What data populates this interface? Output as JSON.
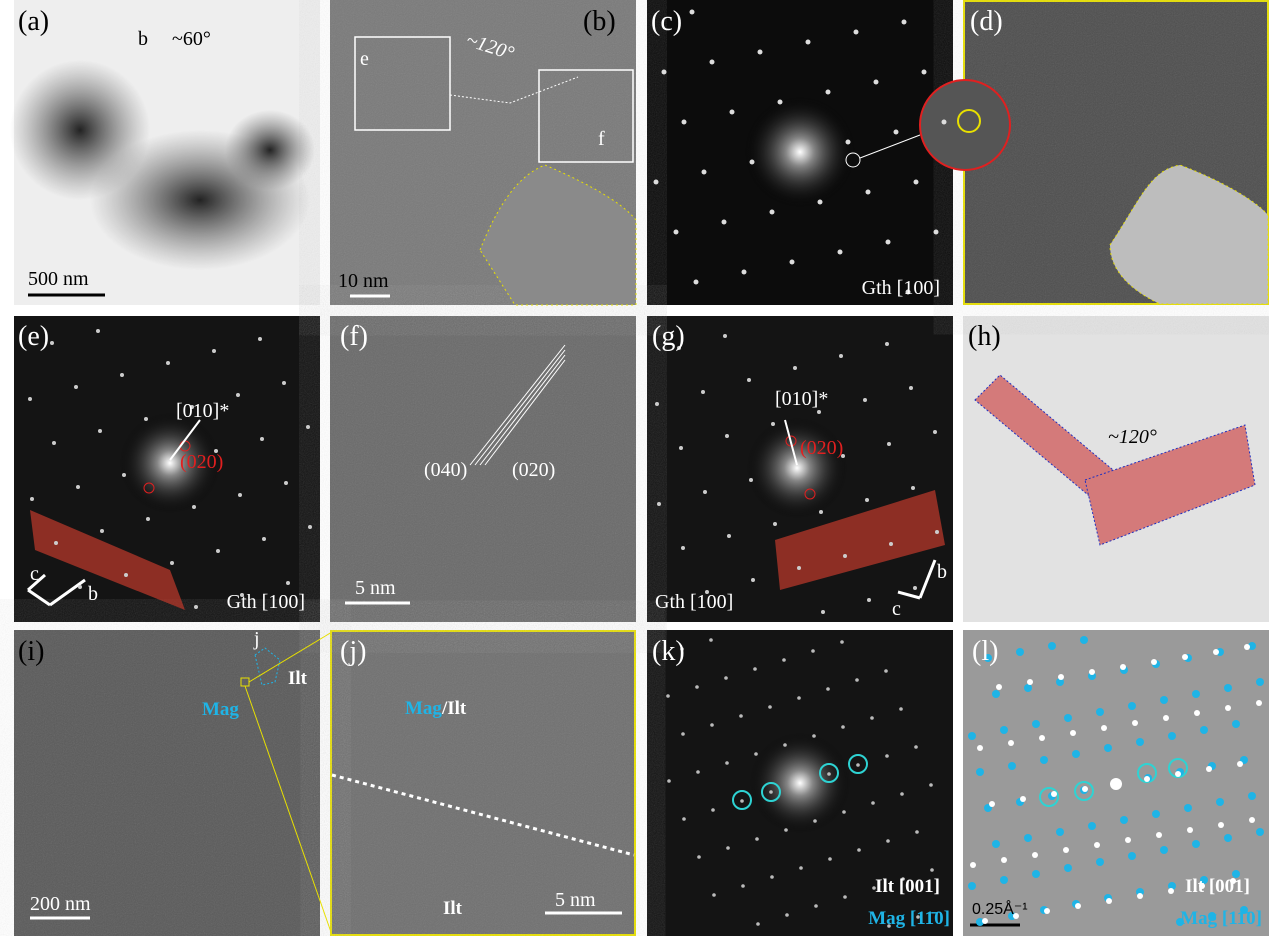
{
  "panels": [
    {
      "label": "(a)",
      "annotations": [
        "b",
        "~60°"
      ],
      "scale_bar": "500 nm"
    },
    {
      "label": "(b)",
      "annotations": [
        "e",
        "f",
        "~120°"
      ],
      "scale_bar": "10 nm"
    },
    {
      "label": "(c)",
      "zone_axis": "Gth [100]"
    },
    {
      "label": "(d)"
    },
    {
      "label": "(e)",
      "annotations": [
        "[010]*",
        "(020)",
        "c",
        "b"
      ],
      "zone_axis": "Gth [100]"
    },
    {
      "label": "(f)",
      "annotations": [
        "(040)",
        "(020)"
      ],
      "scale_bar": "5 nm"
    },
    {
      "label": "(g)",
      "annotations": [
        "[010]*",
        "(020)",
        "b",
        "c"
      ],
      "zone_axis": "Gth [100]"
    },
    {
      "label": "(h)",
      "annotations": [
        "~120°"
      ]
    },
    {
      "label": "(i)",
      "annotations": [
        "j",
        "Mag",
        "Ilt"
      ],
      "scale_bar": "200 nm"
    },
    {
      "label": "(j)",
      "annotations": [
        "Mag",
        "/Ilt",
        "Ilt"
      ],
      "scale_bar": "5 nm"
    },
    {
      "label": "(k)",
      "zone_axes": [
        "Ilt [001]",
        "Mag [11̄0]"
      ]
    },
    {
      "label": "(l)",
      "zone_axes": [
        "Ilt [001]",
        "Mag [11̄0]"
      ],
      "scale_bar": "0.25Å⁻¹"
    }
  ]
}
